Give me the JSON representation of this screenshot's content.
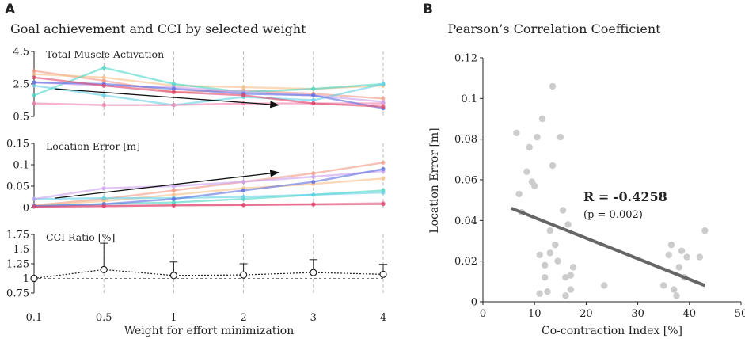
{
  "panel_labels": {
    "a": "A",
    "b": "B"
  },
  "colors": {
    "axis": "#222222",
    "grid": "#b8b8b8",
    "trend": "#111111",
    "pink": "#f07fae",
    "salmon": "#f29a86",
    "peach": "#f6c08a",
    "cyan": "#49d6c4",
    "teal": "#63d2e6",
    "lilac": "#c9a0ef",
    "blue": "#5a6de0",
    "red": "#e0466a",
    "dot": "#cccccc",
    "fit": "#666666"
  },
  "chart_data": [
    {
      "id": "muscle",
      "type": "line",
      "figure_title": "Goal achievement and CCI by selected weight",
      "title": "Total Muscle Activation",
      "categories": [
        "0.1",
        "0.5",
        "1",
        "2",
        "3",
        "4"
      ],
      "xlabel": "Weight for effort minimization",
      "ylabel": "",
      "ylim": [
        0.5,
        4.5
      ],
      "yticks": [
        0.5,
        2.5,
        4.5
      ],
      "ytick_labels": [
        "0.5",
        "2.5",
        "4.5"
      ],
      "grid": "vertical dashed",
      "series": [
        {
          "name": "s1",
          "color": "salmon",
          "values": [
            3.3,
            2.7,
            2.0,
            2.1,
            1.9,
            1.6
          ]
        },
        {
          "name": "s2",
          "color": "peach",
          "values": [
            3.1,
            2.9,
            2.4,
            2.3,
            2.2,
            2.4
          ]
        },
        {
          "name": "s3",
          "color": "cyan",
          "values": [
            1.8,
            3.5,
            2.5,
            2.0,
            2.2,
            2.5
          ]
        },
        {
          "name": "s4",
          "color": "teal",
          "values": [
            2.4,
            1.8,
            1.2,
            1.7,
            1.5,
            2.5
          ]
        },
        {
          "name": "s5",
          "color": "pink",
          "values": [
            1.3,
            1.2,
            1.2,
            1.3,
            1.3,
            1.3
          ]
        },
        {
          "name": "s6",
          "color": "lilac",
          "values": [
            2.6,
            2.4,
            2.3,
            2.0,
            1.8,
            1.4
          ]
        },
        {
          "name": "s7",
          "color": "blue",
          "values": [
            2.6,
            2.5,
            2.2,
            1.9,
            1.8,
            1.0
          ]
        },
        {
          "name": "s8",
          "color": "red",
          "values": [
            2.9,
            2.4,
            2.0,
            1.8,
            1.3,
            1.1
          ]
        }
      ],
      "trend_arrow": {
        "from": [
          0.3,
          2.2
        ],
        "to": [
          3.5,
          1.2
        ]
      }
    },
    {
      "id": "location",
      "type": "line",
      "title": "Location Error [m]",
      "categories": [
        "0.1",
        "0.5",
        "1",
        "2",
        "3",
        "4"
      ],
      "ylim": [
        0,
        0.15
      ],
      "yticks": [
        0,
        0.05,
        0.1,
        0.15
      ],
      "ytick_labels": [
        "0",
        "0.05",
        "0.1",
        "0.15"
      ],
      "grid": "vertical dashed",
      "series": [
        {
          "name": "s1",
          "color": "salmon",
          "values": [
            0.005,
            0.02,
            0.04,
            0.06,
            0.08,
            0.105
          ]
        },
        {
          "name": "s2",
          "color": "peach",
          "values": [
            0.005,
            0.015,
            0.03,
            0.045,
            0.055,
            0.068
          ]
        },
        {
          "name": "s3",
          "color": "cyan",
          "values": [
            0.003,
            0.008,
            0.012,
            0.02,
            0.03,
            0.04
          ]
        },
        {
          "name": "s4",
          "color": "teal",
          "values": [
            0.02,
            0.022,
            0.022,
            0.025,
            0.03,
            0.035
          ]
        },
        {
          "name": "s5",
          "color": "pink",
          "values": [
            0.002,
            0.004,
            0.005,
            0.006,
            0.008,
            0.01
          ]
        },
        {
          "name": "s6",
          "color": "lilac",
          "values": [
            0.02,
            0.045,
            0.05,
            0.06,
            0.072,
            0.085
          ]
        },
        {
          "name": "s7",
          "color": "blue",
          "values": [
            0.003,
            0.008,
            0.02,
            0.04,
            0.06,
            0.09
          ]
        },
        {
          "name": "s8",
          "color": "red",
          "values": [
            0.002,
            0.003,
            0.005,
            0.006,
            0.007,
            0.008
          ]
        }
      ],
      "trend_arrow": {
        "from": [
          0.3,
          0.022
        ],
        "to": [
          3.5,
          0.082
        ]
      }
    },
    {
      "id": "cci",
      "type": "line",
      "title": "CCI Ratio [%]",
      "categories": [
        "0.1",
        "0.5",
        "1",
        "2",
        "3",
        "4"
      ],
      "xlabel": "Weight for effort minimization",
      "ylim": [
        0.75,
        1.75
      ],
      "yticks": [
        0.75,
        1,
        1.25,
        1.5,
        1.75
      ],
      "ytick_labels": [
        "0.75",
        "1",
        "1.25",
        "1.5",
        "1.75"
      ],
      "grid": "vertical dashed",
      "reference_line": 1,
      "values": [
        1.0,
        1.15,
        1.05,
        1.06,
        1.1,
        1.07
      ],
      "error": [
        0,
        0.45,
        0.23,
        0.19,
        0.22,
        0.17
      ]
    },
    {
      "id": "pearson",
      "type": "scatter",
      "title": "Pearson’s Correlation Coefficient",
      "xlabel": "Co-contraction Index [%]",
      "ylabel": "Location Error [m]",
      "xlim": [
        0,
        50
      ],
      "ylim": [
        0,
        0.12
      ],
      "xticks": [
        0,
        10,
        20,
        30,
        40,
        50
      ],
      "xtick_labels": [
        "0",
        "10",
        "20",
        "30",
        "40",
        "50"
      ],
      "yticks": [
        0,
        0.02,
        0.04,
        0.06,
        0.08,
        0.1,
        0.12
      ],
      "ytick_labels": [
        "0",
        "0.02",
        "0.04",
        "0.06",
        "0.08",
        "0.1",
        "0.12"
      ],
      "annotation_r": "R = -0.4258",
      "annotation_p": "(p = 0.002)",
      "fit_line": {
        "x": [
          5.5,
          43
        ],
        "y": [
          0.046,
          0.008
        ]
      },
      "x": [
        6.5,
        7,
        7.5,
        8.5,
        9,
        9.5,
        10,
        10.5,
        11,
        11,
        11.5,
        12,
        12,
        12.5,
        13,
        13,
        13.5,
        13.5,
        14,
        14.5,
        15,
        15.5,
        16,
        16,
        16.5,
        17,
        17,
        17.5,
        23.5,
        35,
        36,
        36.5,
        37,
        37.5,
        38,
        38.5,
        39,
        39.5,
        42,
        43
      ],
      "y": [
        0.083,
        0.053,
        0.044,
        0.064,
        0.076,
        0.059,
        0.057,
        0.081,
        0.004,
        0.023,
        0.09,
        0.012,
        0.018,
        0.005,
        0.035,
        0.024,
        0.067,
        0.106,
        0.028,
        0.02,
        0.081,
        0.045,
        0.003,
        0.012,
        0.038,
        0.013,
        0.006,
        0.017,
        0.008,
        0.008,
        0.023,
        0.028,
        0.006,
        0.003,
        0.017,
        0.025,
        0.012,
        0.022,
        0.022,
        0.035
      ]
    }
  ]
}
